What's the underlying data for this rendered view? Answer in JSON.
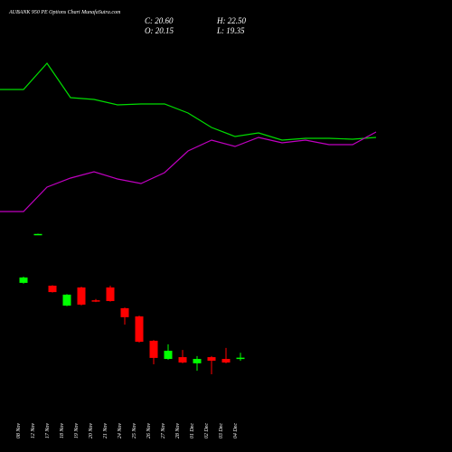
{
  "chart_data": {
    "type": "candlestick",
    "title": "AUBANK 950  PE Options  Chart MunafaSutra.com",
    "ohlc_labels": {
      "close": "C: 20.60",
      "high": "H: 22.50",
      "open": "O: 20.15",
      "low": "L: 19.35"
    },
    "categories": [
      "08 Nov",
      "12 Nov",
      "17 Nov",
      "18 Nov",
      "19 Nov",
      "20 Nov",
      "21 Nov",
      "24 Nov",
      "25 Nov",
      "26 Nov",
      "27 Nov",
      "28 Nov",
      "01 Dec",
      "02 Dec",
      "03 Dec",
      "04 Dec"
    ],
    "open": [
      49.8,
      68.6,
      48.7,
      40.9,
      48.0,
      43.0,
      48.0,
      39.9,
      36.7,
      27.2,
      20.1,
      20.8,
      18.4,
      20.8,
      20.1,
      20.15
    ],
    "high": [
      52.2,
      69.0,
      48.9,
      45.4,
      48.3,
      43.5,
      48.7,
      40.2,
      37.0,
      27.5,
      25.8,
      23.6,
      21.2,
      21.2,
      24.4,
      22.5
    ],
    "low": [
      49.5,
      68.5,
      46.0,
      40.7,
      41.0,
      42.3,
      42.5,
      33.5,
      26.5,
      18.0,
      19.8,
      18.4,
      15.5,
      14.1,
      18.4,
      19.35
    ],
    "close": [
      51.9,
      68.9,
      46.2,
      45.2,
      41.3,
      42.7,
      42.7,
      36.4,
      26.8,
      20.5,
      23.3,
      18.7,
      20.1,
      19.4,
      18.7,
      20.6
    ],
    "up_color": "#00ff00",
    "down_color": "#ff0000",
    "ylim": [
      12,
      72
    ],
    "series": [
      {
        "name": "upper line",
        "color": "#00dd00",
        "axis": "y2",
        "values": [
          100.5,
          115,
          96,
          95,
          92,
          92.5,
          92.5,
          87.5,
          79.5,
          74.5,
          76.5,
          72.5,
          73.5,
          73.5,
          73,
          74
        ]
      },
      {
        "name": "lower line",
        "color": "#c000c0",
        "axis": "y2",
        "values": [
          33,
          46.5,
          51.5,
          55,
          51,
          48.5,
          54.5,
          66.5,
          72.5,
          69,
          74,
          71,
          72.5,
          70,
          70,
          77
        ]
      }
    ],
    "y2lim": [
      0,
      130
    ]
  }
}
